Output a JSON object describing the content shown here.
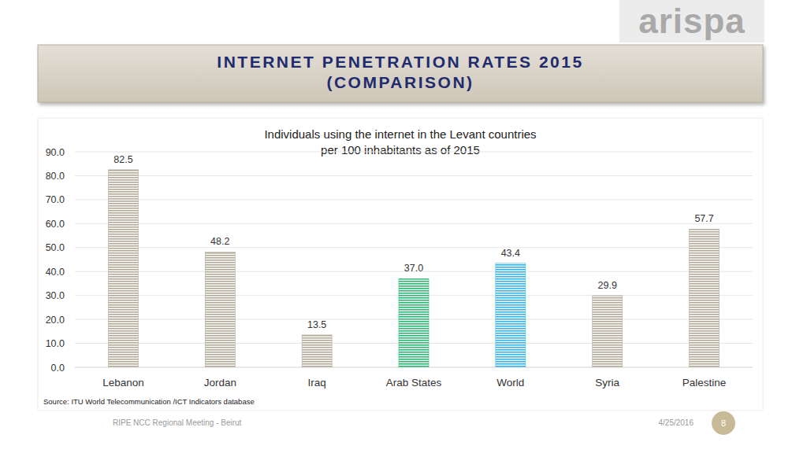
{
  "slide": {
    "logo": "arispa",
    "heading": [
      "INTERNET PENETRATION RATES 2015",
      "(COMPARISON)"
    ],
    "source": "Source:  ITU World Telecommunication /ICT Indicators database",
    "footer": "RIPE NCC Regional Meeting - Beirut",
    "date": "4/25/2016",
    "page": "8"
  },
  "chart_data": {
    "type": "bar",
    "title": "Individuals using the internet in the Levant countries",
    "subtitle": "per 100 inhabitants as of 2015",
    "categories": [
      "Lebanon",
      "Jordan",
      "Iraq",
      "Arab States",
      "World",
      "Syria",
      "Palestine"
    ],
    "values": [
      82.5,
      48.2,
      13.5,
      37.0,
      43.4,
      29.9,
      57.7
    ],
    "value_labels": [
      "82.5",
      "48.2",
      "13.5",
      "37.0",
      "43.4",
      "29.9",
      "57.7"
    ],
    "colors": [
      "#b3ab98",
      "#b3ab98",
      "#b3ab98",
      "#2cb872",
      "#35b5e8",
      "#b3ab98",
      "#b3ab98"
    ],
    "ylim": [
      0,
      90
    ],
    "yticks": [
      {
        "value": 0,
        "label": "0.0"
      },
      {
        "value": 10,
        "label": "10.0"
      },
      {
        "value": 20,
        "label": "20.0"
      },
      {
        "value": 30,
        "label": "30.0"
      },
      {
        "value": 40,
        "label": "40.0"
      },
      {
        "value": 50,
        "label": "50.0"
      },
      {
        "value": 60,
        "label": "60.0"
      },
      {
        "value": 70,
        "label": "70.0"
      },
      {
        "value": 80,
        "label": "80.0"
      },
      {
        "value": 90,
        "label": "90.0"
      }
    ],
    "grid": true,
    "data_labels": true
  }
}
